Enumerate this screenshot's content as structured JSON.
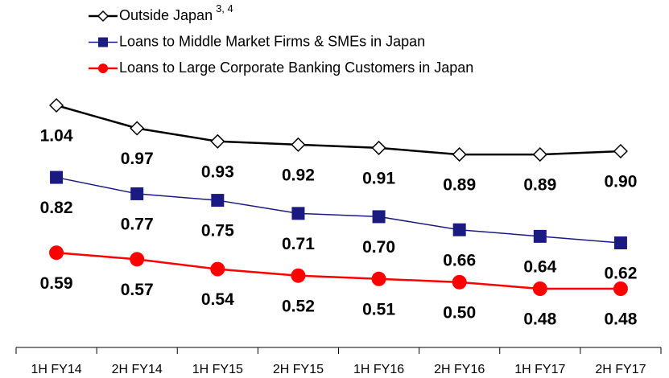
{
  "chart_data": {
    "type": "line",
    "categories": [
      "1H FY14",
      "2H FY14",
      "1H FY15",
      "2H FY15",
      "1H FY16",
      "2H FY16",
      "1H FY17",
      "2H FY17"
    ],
    "series": [
      {
        "name": "Outside Japan",
        "note": "3, 4",
        "color": "#000000",
        "marker": "diamond",
        "values": [
          1.04,
          0.97,
          0.93,
          0.92,
          0.91,
          0.89,
          0.89,
          0.9
        ],
        "value_labels": [
          "1.04",
          "0.97",
          "0.93",
          "0.92",
          "0.91",
          "0.89",
          "0.89",
          "0.90"
        ]
      },
      {
        "name": "Loans to Middle Market Firms & SMEs in Japan",
        "color": "#1a1a80",
        "marker": "square",
        "values": [
          0.82,
          0.77,
          0.75,
          0.71,
          0.7,
          0.66,
          0.64,
          0.62
        ],
        "value_labels": [
          "0.82",
          "0.77",
          "0.75",
          "0.71",
          "0.70",
          "0.66",
          "0.64",
          "0.62"
        ]
      },
      {
        "name": "Loans to Large Corporate Banking Customers in Japan",
        "color": "#ff0000",
        "marker": "circle",
        "values": [
          0.59,
          0.57,
          0.54,
          0.52,
          0.51,
          0.5,
          0.48,
          0.48
        ],
        "value_labels": [
          "0.59",
          "0.57",
          "0.54",
          "0.52",
          "0.51",
          "0.50",
          "0.48",
          "0.48"
        ]
      }
    ],
    "legend": "top-left"
  }
}
